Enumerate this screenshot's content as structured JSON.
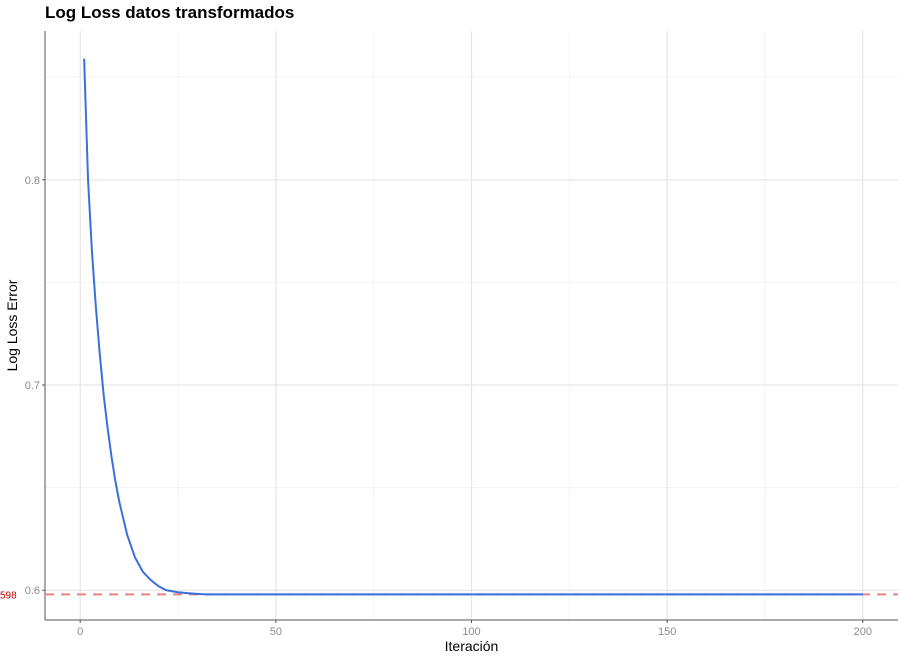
{
  "chart_data": {
    "type": "line",
    "title": "Log Loss datos transformados",
    "xlabel": "Iteración",
    "ylabel": "Log Loss Error",
    "xlim": [
      -9,
      209
    ],
    "ylim": [
      0.5855,
      0.8725
    ],
    "x_ticks": [
      0,
      50,
      100,
      150,
      200
    ],
    "x_tick_labels": [
      "0",
      "50",
      "100",
      "150",
      "200"
    ],
    "y_ticks": [
      0.6,
      0.7,
      0.8
    ],
    "y_tick_labels": [
      "0.6",
      "0.7",
      "0.8"
    ],
    "grid": true,
    "line_color": "#3a6fe0",
    "reference_color": "#f08080",
    "reference_label_color": "#cc0000",
    "reference_line": {
      "y": 0.598,
      "label": "598",
      "style": "dashed"
    },
    "series": [
      {
        "x": [
          1,
          2,
          3,
          4,
          5,
          6,
          7,
          8,
          9,
          10,
          12,
          14,
          16,
          18,
          20,
          22,
          25,
          28,
          32,
          36,
          40,
          50,
          60,
          80,
          100,
          120,
          140,
          160,
          180,
          200
        ],
        "y": [
          0.859,
          0.8,
          0.765,
          0.738,
          0.715,
          0.695,
          0.679,
          0.665,
          0.653,
          0.643,
          0.627,
          0.616,
          0.609,
          0.605,
          0.602,
          0.6,
          0.599,
          0.5985,
          0.598,
          0.598,
          0.598,
          0.598,
          0.598,
          0.598,
          0.598,
          0.598,
          0.598,
          0.598,
          0.598,
          0.598
        ]
      }
    ]
  }
}
